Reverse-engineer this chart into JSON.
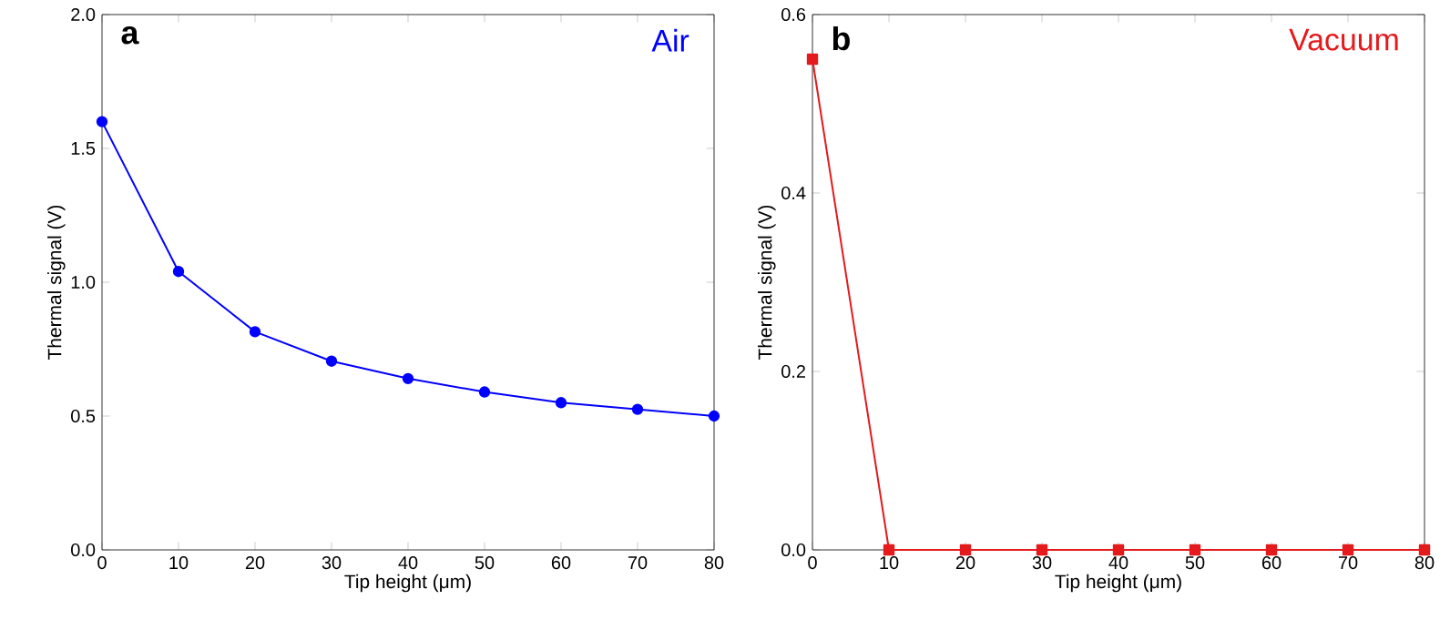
{
  "chart_data": [
    {
      "type": "line",
      "xlabel": "Tip height (μm)",
      "ylabel": "Thermal signal (V)",
      "annotations": [
        "a"
      ],
      "marker": "circle",
      "line_style": "solid",
      "xlim": [
        0,
        80
      ],
      "ylim": [
        0,
        2
      ],
      "xticks": [
        0,
        10,
        20,
        30,
        40,
        50,
        60,
        70,
        80
      ],
      "yticks": [
        {
          "value": 0,
          "label": "0.0"
        },
        0.5,
        {
          "value": 1,
          "label": "1.0"
        },
        1.5,
        {
          "value": 2,
          "label": "2.0"
        }
      ],
      "x": [
        0,
        10,
        20,
        30,
        40,
        50,
        60,
        70,
        80
      ],
      "series": [
        {
          "name": "Air",
          "color": "#0000ff",
          "values": [
            1.6,
            1.04,
            0.815,
            0.705,
            0.64,
            0.59,
            0.55,
            0.525,
            0.5
          ]
        }
      ]
    },
    {
      "type": "line",
      "xlabel": "Tip height (μm)",
      "ylabel": "Thermal signal (V)",
      "annotations": [
        "b"
      ],
      "marker": "square",
      "line_style": "solid",
      "xlim": [
        0,
        80
      ],
      "ylim": [
        0,
        0.6
      ],
      "xticks": [
        0,
        10,
        20,
        30,
        40,
        50,
        60,
        70,
        80
      ],
      "yticks": [
        {
          "value": 0,
          "label": "0.0"
        },
        0.2,
        0.4,
        0.6
      ],
      "x": [
        0,
        10,
        20,
        30,
        40,
        50,
        60,
        70,
        80
      ],
      "series": [
        {
          "name": "Vacuum",
          "color": "#e41a1c",
          "values": [
            0.55,
            0,
            0,
            0,
            0,
            0,
            0,
            0,
            0
          ]
        }
      ]
    }
  ]
}
